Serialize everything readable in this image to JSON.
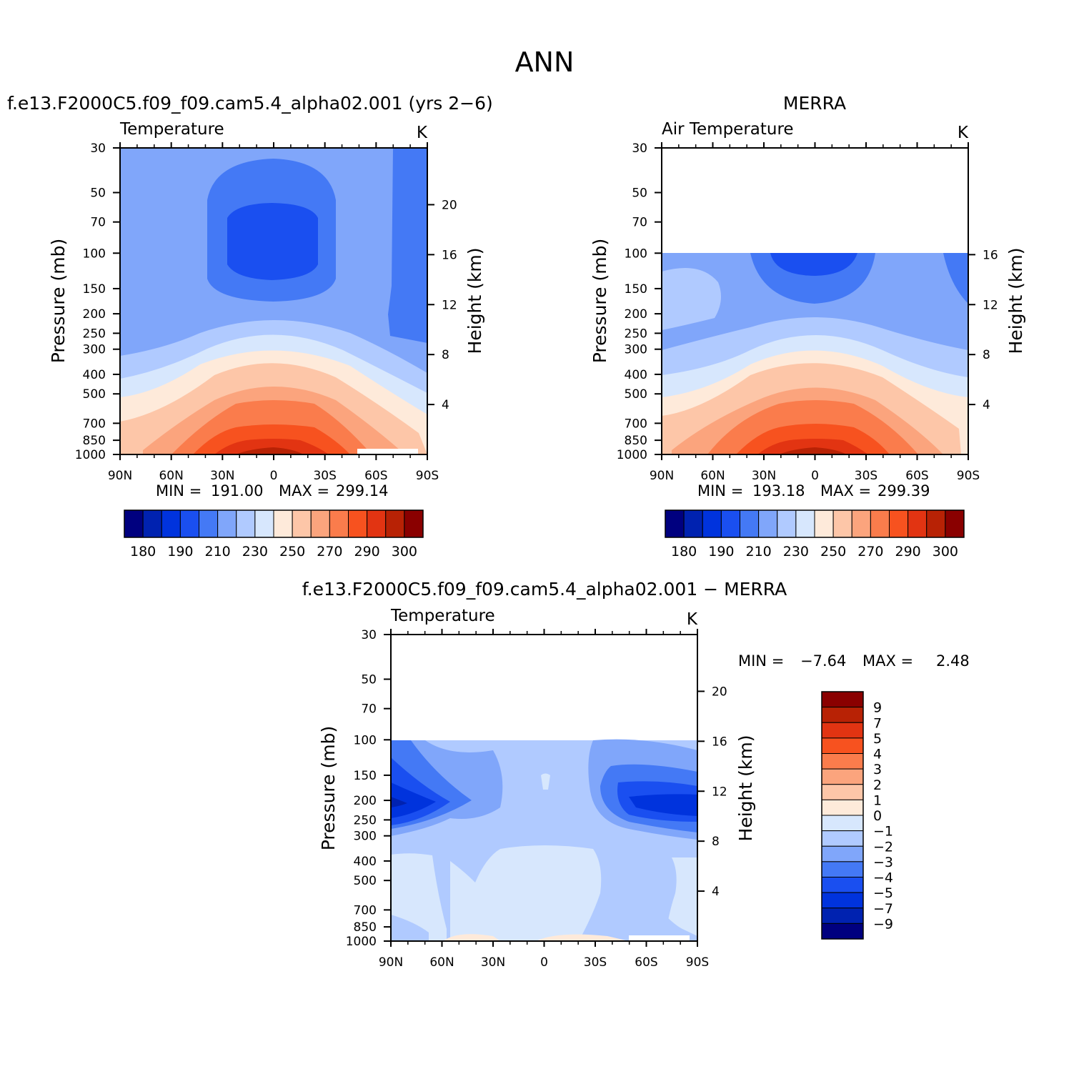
{
  "figure": {
    "title": "ANN"
  },
  "chart_data": [
    {
      "type": "heatmap",
      "id": "model",
      "title": "f.e13.F2000C5.f09_f09.cam5.4_alpha02.001 (yrs 2−6)",
      "variable": "Temperature",
      "units": "K",
      "ylabel": "Pressure (mb)",
      "ylabel_right": "Height (km)",
      "x_ticks": [
        "90N",
        "60N",
        "30N",
        "0",
        "30S",
        "60S",
        "90S"
      ],
      "y_ticks": [
        "30",
        "50",
        "70",
        "100",
        "150",
        "200",
        "250",
        "300",
        "400",
        "500",
        "700",
        "850",
        "1000"
      ],
      "height_ticks": [
        "20",
        "16",
        "12",
        "8",
        "4"
      ],
      "ylim": [
        1000,
        30
      ],
      "xlim": [
        90,
        -90
      ],
      "min_label": "MIN =",
      "min_value": "191.00",
      "max_label": "MAX =",
      "max_value": "299.14",
      "contour_levels": [
        180,
        185,
        190,
        200,
        210,
        220,
        230,
        240,
        250,
        260,
        270,
        280,
        290,
        295,
        300
      ],
      "colorbar_labels": [
        "180",
        "190",
        "210",
        "230",
        "250",
        "270",
        "290",
        "300"
      ],
      "data_valid_top_mb": 30
    },
    {
      "type": "heatmap",
      "id": "obs",
      "title": "MERRA",
      "variable": "Air Temperature",
      "units": "K",
      "ylabel": "Pressure (mb)",
      "ylabel_right": "Height (km)",
      "x_ticks": [
        "90N",
        "60N",
        "30N",
        "0",
        "30S",
        "60S",
        "90S"
      ],
      "y_ticks": [
        "30",
        "50",
        "70",
        "100",
        "150",
        "200",
        "250",
        "300",
        "400",
        "500",
        "700",
        "850",
        "1000"
      ],
      "height_ticks": [
        "16",
        "12",
        "8",
        "4"
      ],
      "ylim": [
        1000,
        30
      ],
      "xlim": [
        90,
        -90
      ],
      "min_label": "MIN =",
      "min_value": "193.18",
      "max_label": "MAX =",
      "max_value": "299.39",
      "contour_levels": [
        180,
        185,
        190,
        200,
        210,
        220,
        230,
        240,
        250,
        260,
        270,
        280,
        290,
        295,
        300
      ],
      "colorbar_labels": [
        "180",
        "190",
        "210",
        "230",
        "250",
        "270",
        "290",
        "300"
      ],
      "data_valid_top_mb": 100
    },
    {
      "type": "heatmap",
      "id": "diff",
      "title": "f.e13.F2000C5.f09_f09.cam5.4_alpha02.001 − MERRA",
      "variable": "Temperature",
      "units": "K",
      "ylabel": "Pressure (mb)",
      "ylabel_right": "Height (km)",
      "x_ticks": [
        "90N",
        "60N",
        "30N",
        "0",
        "30S",
        "60S",
        "90S"
      ],
      "y_ticks": [
        "30",
        "50",
        "70",
        "100",
        "150",
        "200",
        "250",
        "300",
        "400",
        "500",
        "700",
        "850",
        "1000"
      ],
      "height_ticks": [
        "20",
        "16",
        "12",
        "8",
        "4"
      ],
      "ylim": [
        1000,
        30
      ],
      "xlim": [
        90,
        -90
      ],
      "min_label": "MIN =",
      "min_value": "−7.64",
      "max_label": "MAX =",
      "max_value": "2.48",
      "contour_levels": [
        -9,
        -7,
        -5,
        -4,
        -3,
        -2,
        -1,
        0,
        1,
        2,
        3,
        4,
        5,
        7,
        9
      ],
      "colorbar_labels": [
        "9",
        "7",
        "5",
        "4",
        "3",
        "2",
        "1",
        "0",
        "−1",
        "−2",
        "−3",
        "−4",
        "−5",
        "−7",
        "−9"
      ],
      "data_valid_top_mb": 100
    }
  ],
  "colors": {
    "abs_palette": [
      "#00007f",
      "#0022b0",
      "#0033dd",
      "#1a4ff0",
      "#4479f5",
      "#80a6fa",
      "#b0caff",
      "#d7e7fd",
      "#feeada",
      "#fdc6a8",
      "#fba47d",
      "#fa7c4c",
      "#f7521f",
      "#e23412",
      "#b82205",
      "#8a0000"
    ],
    "diff_palette": [
      "#00007f",
      "#0022b0",
      "#0033dd",
      "#1a4ff0",
      "#4479f5",
      "#80a6fa",
      "#b0caff",
      "#d7e7fd",
      "#feeada",
      "#fdc6a8",
      "#fba47d",
      "#fa7c4c",
      "#f7521f",
      "#e23412",
      "#b82205",
      "#8a0000"
    ]
  }
}
